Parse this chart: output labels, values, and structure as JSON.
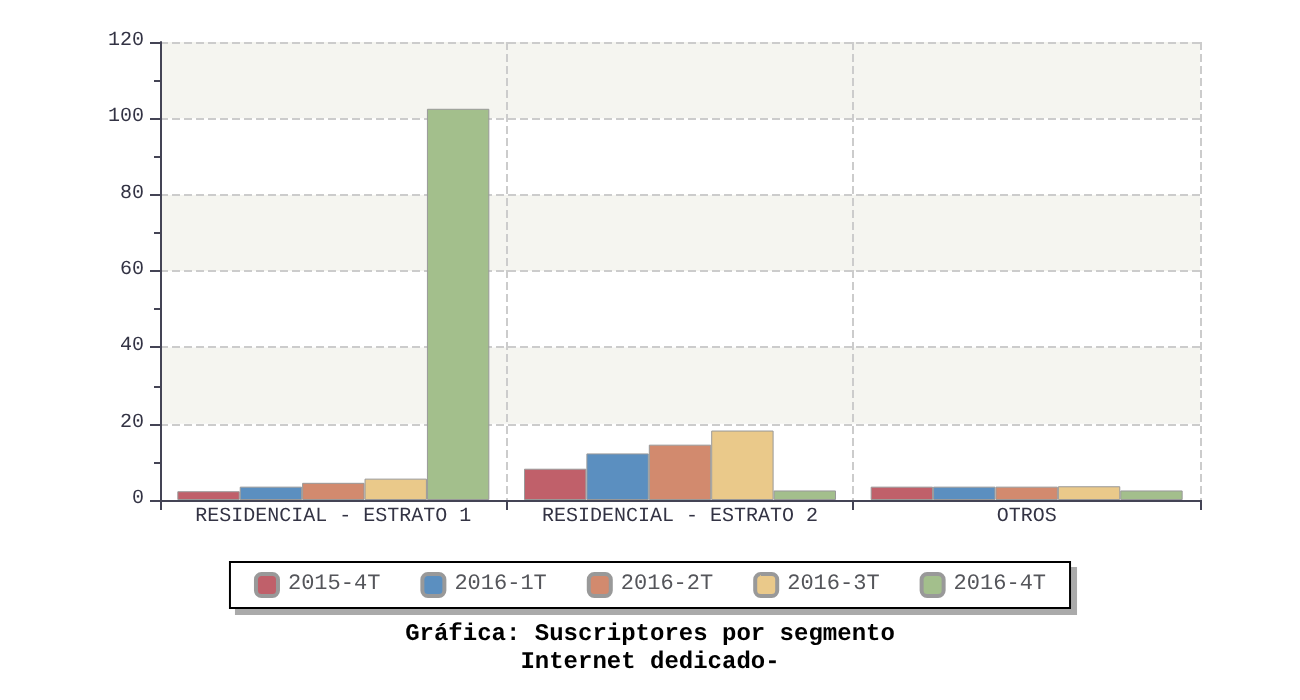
{
  "chart_data": {
    "type": "bar",
    "title": "Gráfica: Suscriptores por segmento",
    "subtitle": "Internet dedicado-",
    "categories": [
      "RESIDENCIAL - ESTRATO 1",
      "RESIDENCIAL - ESTRATO 2",
      "OTROS"
    ],
    "series": [
      {
        "name": "2015-4T",
        "color": "#c0606a",
        "values": [
          2.3,
          8.2,
          3.5
        ]
      },
      {
        "name": "2016-1T",
        "color": "#5b8fc0",
        "values": [
          3.5,
          12.2,
          3.5
        ]
      },
      {
        "name": "2016-2T",
        "color": "#d28a6e",
        "values": [
          4.5,
          14.5,
          3.5
        ]
      },
      {
        "name": "2016-3T",
        "color": "#eac98a",
        "values": [
          5.6,
          18.2,
          3.6
        ]
      },
      {
        "name": "2016-4T",
        "color": "#a3bf8c",
        "values": [
          102.5,
          2.5,
          2.5
        ]
      }
    ],
    "ylim": [
      0,
      120
    ],
    "yticks": [
      0,
      20,
      40,
      60,
      80,
      100,
      120
    ],
    "grid": true,
    "legend": "bottom"
  }
}
